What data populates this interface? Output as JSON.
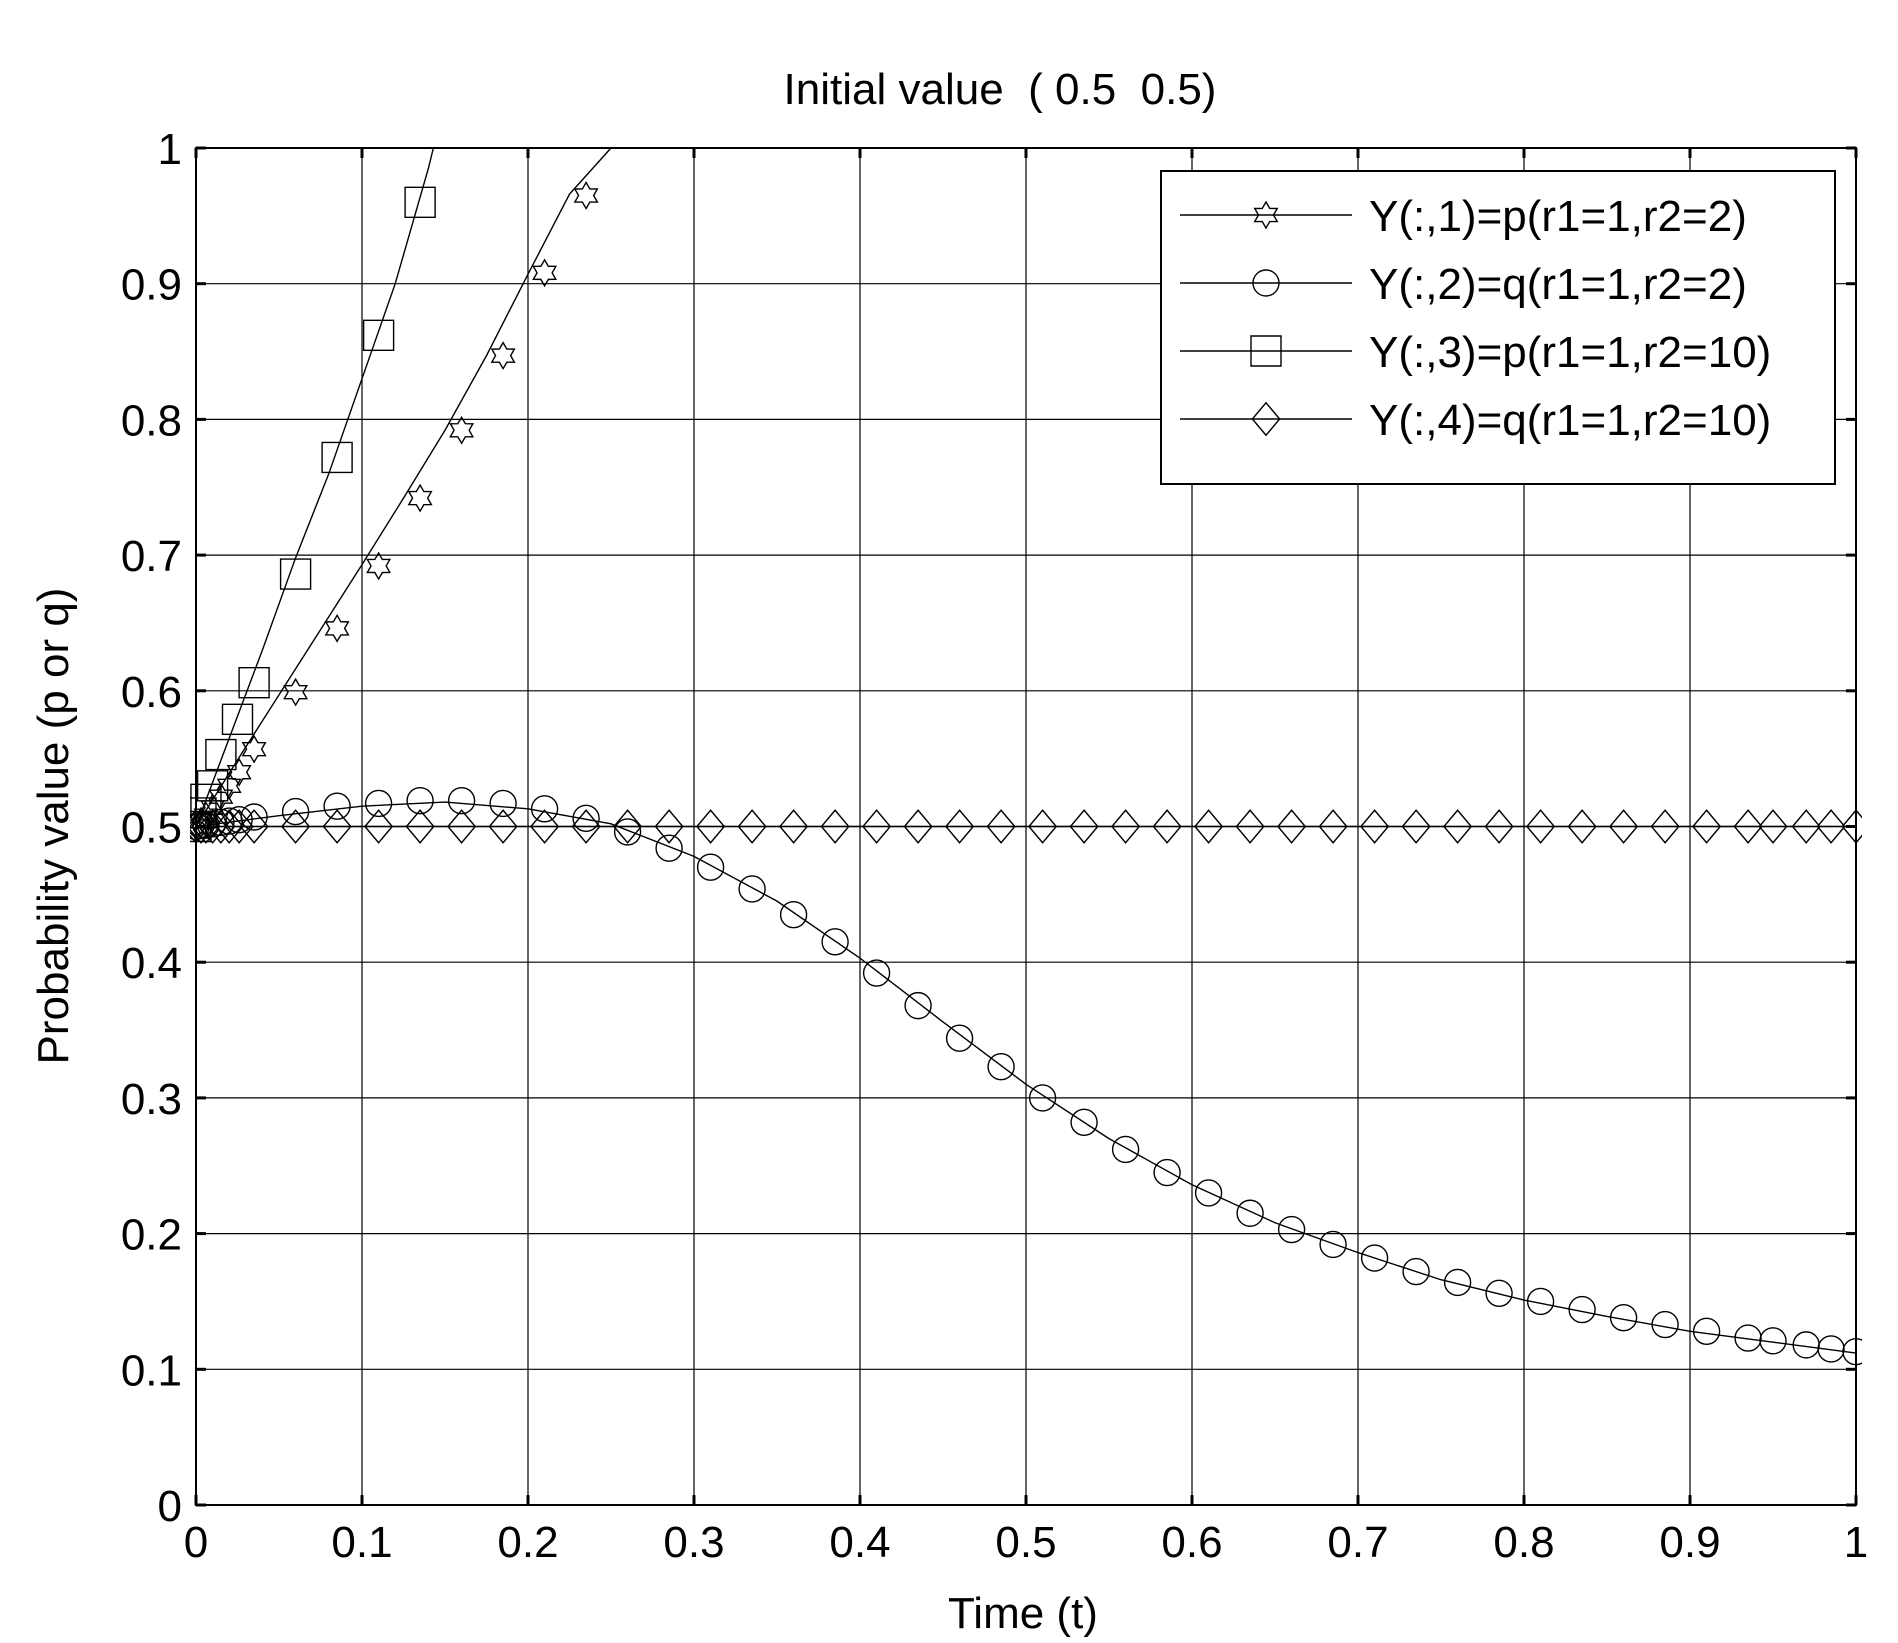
{
  "chart_data": {
    "type": "line",
    "title": "Initial value  ( 0.5  0.5)",
    "xlabel": "Time (t)",
    "ylabel": "Probability value (p or q)",
    "xlim": [
      0,
      1
    ],
    "ylim": [
      0,
      1
    ],
    "xticks": [
      "0",
      "0.1",
      "0.2",
      "0.3",
      "0.4",
      "0.5",
      "0.6",
      "0.7",
      "0.8",
      "0.9",
      "1"
    ],
    "yticks": [
      "0",
      "0.1",
      "0.2",
      "0.3",
      "0.4",
      "0.5",
      "0.6",
      "0.7",
      "0.8",
      "0.9",
      "1"
    ],
    "grid": true,
    "legend_position": "top-right",
    "line_color": "#000000",
    "series": [
      {
        "name": "Y(:,1)=p(r1=1,r2=2)",
        "marker": "hexagram",
        "line_x": [
          0,
          0.025,
          0.05,
          0.075,
          0.1,
          0.125,
          0.15,
          0.175,
          0.2,
          0.225,
          0.25
        ],
        "line_y": [
          0.5,
          0.549,
          0.597,
          0.645,
          0.693,
          0.742,
          0.792,
          0.847,
          0.907,
          0.966,
          1.0
        ],
        "x": [
          0,
          0.003,
          0.006,
          0.01,
          0.015,
          0.02,
          0.026,
          0.035,
          0.06,
          0.085,
          0.11,
          0.135,
          0.16,
          0.185,
          0.21,
          0.235
        ],
        "y": [
          0.5,
          0.504,
          0.508,
          0.514,
          0.522,
          0.53,
          0.54,
          0.557,
          0.599,
          0.646,
          0.692,
          0.742,
          0.792,
          0.847,
          0.908,
          0.965
        ]
      },
      {
        "name": "Y(:,2)=q(r1=1,r2=2)",
        "marker": "circle",
        "line_x": [
          0,
          0.05,
          0.1,
          0.15,
          0.2,
          0.25,
          0.3,
          0.35,
          0.4,
          0.45,
          0.5,
          0.55,
          0.6,
          0.65,
          0.7,
          0.75,
          0.8,
          0.85,
          0.9,
          0.95,
          1.0
        ],
        "line_y": [
          0.5,
          0.508,
          0.515,
          0.518,
          0.513,
          0.502,
          0.478,
          0.445,
          0.403,
          0.356,
          0.31,
          0.27,
          0.236,
          0.208,
          0.186,
          0.166,
          0.151,
          0.139,
          0.128,
          0.12,
          0.112
        ],
        "x": [
          0,
          0.003,
          0.006,
          0.01,
          0.015,
          0.02,
          0.026,
          0.035,
          0.06,
          0.085,
          0.11,
          0.135,
          0.16,
          0.185,
          0.21,
          0.235,
          0.26,
          0.285,
          0.31,
          0.335,
          0.36,
          0.385,
          0.41,
          0.435,
          0.46,
          0.485,
          0.51,
          0.535,
          0.56,
          0.585,
          0.61,
          0.635,
          0.66,
          0.685,
          0.71,
          0.735,
          0.76,
          0.785,
          0.81,
          0.835,
          0.86,
          0.885,
          0.91,
          0.935,
          0.95,
          0.97,
          0.985,
          1.0
        ],
        "y": [
          0.5,
          0.501,
          0.501,
          0.502,
          0.503,
          0.504,
          0.505,
          0.507,
          0.511,
          0.515,
          0.517,
          0.519,
          0.519,
          0.517,
          0.513,
          0.506,
          0.496,
          0.484,
          0.47,
          0.454,
          0.435,
          0.415,
          0.392,
          0.368,
          0.344,
          0.323,
          0.3,
          0.282,
          0.262,
          0.245,
          0.23,
          0.215,
          0.203,
          0.192,
          0.182,
          0.172,
          0.164,
          0.156,
          0.15,
          0.144,
          0.138,
          0.133,
          0.128,
          0.123,
          0.121,
          0.118,
          0.115,
          0.113
        ]
      },
      {
        "name": "Y(:,3)=p(r1=1,r2=10)",
        "marker": "square",
        "line_x": [
          0,
          0.02,
          0.04,
          0.06,
          0.08,
          0.1,
          0.12,
          0.14,
          0.143
        ],
        "line_y": [
          0.5,
          0.565,
          0.63,
          0.698,
          0.76,
          0.83,
          0.9,
          0.985,
          1.0
        ],
        "x": [
          0,
          0.003,
          0.006,
          0.01,
          0.015,
          0.025,
          0.035,
          0.06,
          0.085,
          0.11,
          0.135
        ],
        "y": [
          0.5,
          0.51,
          0.52,
          0.53,
          0.553,
          0.579,
          0.606,
          0.686,
          0.772,
          0.862,
          0.96
        ]
      },
      {
        "name": "Y(:,4)=q(r1=1,r2=10)",
        "marker": "diamond",
        "line_x": [
          0,
          1
        ],
        "line_y": [
          0.5,
          0.5
        ],
        "x": [
          0,
          0.003,
          0.006,
          0.01,
          0.015,
          0.02,
          0.026,
          0.035,
          0.06,
          0.085,
          0.11,
          0.135,
          0.16,
          0.185,
          0.21,
          0.235,
          0.26,
          0.285,
          0.31,
          0.335,
          0.36,
          0.385,
          0.41,
          0.435,
          0.46,
          0.485,
          0.51,
          0.535,
          0.56,
          0.585,
          0.61,
          0.635,
          0.66,
          0.685,
          0.71,
          0.735,
          0.76,
          0.785,
          0.81,
          0.835,
          0.86,
          0.885,
          0.91,
          0.935,
          0.95,
          0.97,
          0.985,
          1.0
        ],
        "y": [
          0.5,
          0.5,
          0.5,
          0.5,
          0.5,
          0.5,
          0.5,
          0.5,
          0.5,
          0.5,
          0.5,
          0.5,
          0.5,
          0.5,
          0.5,
          0.5,
          0.5,
          0.5,
          0.5,
          0.5,
          0.5,
          0.5,
          0.5,
          0.5,
          0.5,
          0.5,
          0.5,
          0.5,
          0.5,
          0.5,
          0.5,
          0.5,
          0.5,
          0.5,
          0.5,
          0.5,
          0.5,
          0.5,
          0.5,
          0.5,
          0.5,
          0.5,
          0.5,
          0.5,
          0.5,
          0.5,
          0.5,
          0.5
        ]
      }
    ]
  }
}
